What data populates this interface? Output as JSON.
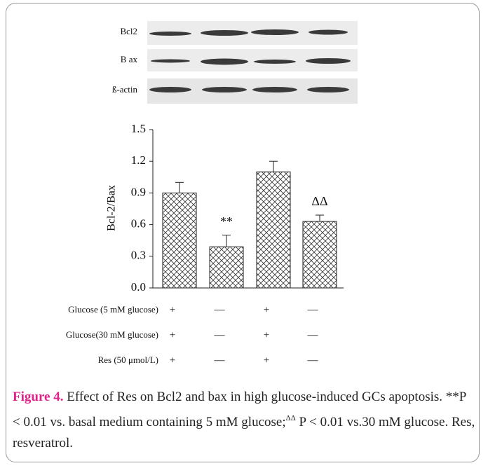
{
  "blots": [
    "Bcl2",
    "B ax",
    "ß-actin"
  ],
  "chart_data": {
    "type": "bar",
    "y_label": "Bcl-2/Bax",
    "categories": [
      null,
      null,
      null,
      null
    ],
    "values": [
      0.9,
      0.39,
      1.1,
      0.63
    ],
    "errors": [
      0.1,
      0.11,
      0.1,
      0.06
    ],
    "annotations": [
      null,
      "**",
      null,
      "ΔΔ"
    ],
    "ylim": [
      0,
      1.5
    ],
    "yticks": [
      {
        "value": 0,
        "label": "0.0"
      },
      0.3,
      0.6,
      0.9,
      1.2,
      1.5
    ],
    "color": "hatch"
  },
  "conditions": [
    {
      "label": "Glucose (5 mM glucose)",
      "marks": [
        "+",
        "—",
        "+",
        "—"
      ]
    },
    {
      "label": "Glucose(30 mM glucose)",
      "marks": [
        "+",
        "—",
        "+",
        "—"
      ]
    },
    {
      "label": "Res (50 μmol/L)",
      "marks": [
        "+",
        "—",
        "+",
        "—"
      ]
    }
  ],
  "caption": {
    "label": "Figure 4.",
    "text": "Effect of Res on Bcl2 and bax in high glucose-induced GCs apoptosis. **P < 0.01 vs. basal medium containing 5 mM glucose;",
    "superscript": "ΔΔ",
    "text_after": "P < 0.01 vs.30 mM glucose. Res, resveratrol."
  }
}
